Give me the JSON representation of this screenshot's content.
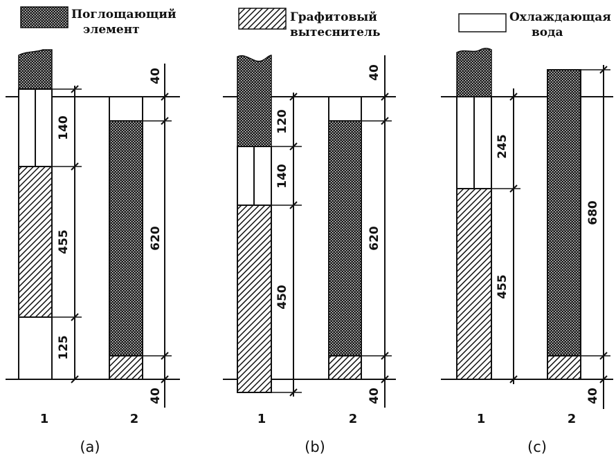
{
  "legend": {
    "absorber": [
      "Поглощающий",
      "элемент"
    ],
    "graphite": [
      "Графитовый",
      "вытеснитель"
    ],
    "water": [
      "Охлаждающая",
      "вода"
    ]
  },
  "panels": [
    {
      "label": "(a)",
      "columns": [
        "1",
        "2"
      ],
      "col1_dims": [
        "140",
        "455",
        "125"
      ],
      "col2_dims": [
        "40",
        "620",
        "40"
      ]
    },
    {
      "label": "(b)",
      "columns": [
        "1",
        "2"
      ],
      "col1_dims": [
        "120",
        "140",
        "450"
      ],
      "col2_dims": [
        "40",
        "620",
        "40"
      ]
    },
    {
      "label": "(c)",
      "columns": [
        "1",
        "2"
      ],
      "col1_dims": [
        "245",
        "455"
      ],
      "col2_dims": [
        "680",
        "40"
      ]
    }
  ]
}
